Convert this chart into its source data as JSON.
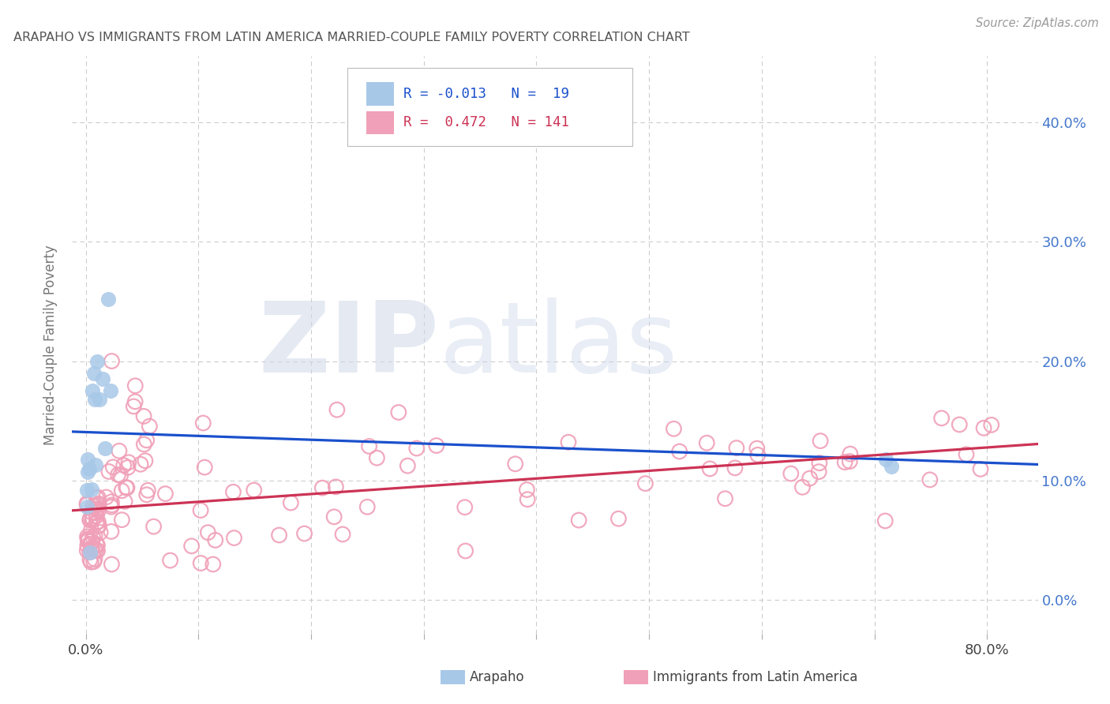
{
  "title": "ARAPAHO VS IMMIGRANTS FROM LATIN AMERICA MARRIED-COUPLE FAMILY POVERTY CORRELATION CHART",
  "source": "Source: ZipAtlas.com",
  "ylabel": "Married-Couple Family Poverty",
  "xlabel_ticks_edge": [
    "0.0%",
    "80.0%"
  ],
  "xlabel_vals_edge": [
    0.0,
    0.8
  ],
  "xlabel_vals_all": [
    0.0,
    0.1,
    0.2,
    0.3,
    0.4,
    0.5,
    0.6,
    0.7,
    0.8
  ],
  "ylabel_ticks": [
    "0.0%",
    "10.0%",
    "20.0%",
    "30.0%",
    "40.0%"
  ],
  "ylabel_vals": [
    0.0,
    0.1,
    0.2,
    0.3,
    0.4
  ],
  "xlim": [
    -0.012,
    0.845
  ],
  "ylim": [
    -0.028,
    0.455
  ],
  "legend1_text": "R = -0.013   N =  19",
  "legend2_text": "R =  0.472   N = 141",
  "legend_label1": "Arapaho",
  "legend_label2": "Immigrants from Latin America",
  "arapaho_fill_color": "#a8c8e8",
  "latin_edge_color": "#f0a0b8",
  "arapaho_line_color": "#1a50cc",
  "latin_line_color": "#cc3355",
  "watermark_zip": "ZIP",
  "watermark_atlas": "atlas",
  "background_color": "#ffffff",
  "grid_color": "#cccccc",
  "title_color": "#555555",
  "source_color": "#999999",
  "tick_color_blue": "#4477cc",
  "tick_color_dark": "#444444"
}
